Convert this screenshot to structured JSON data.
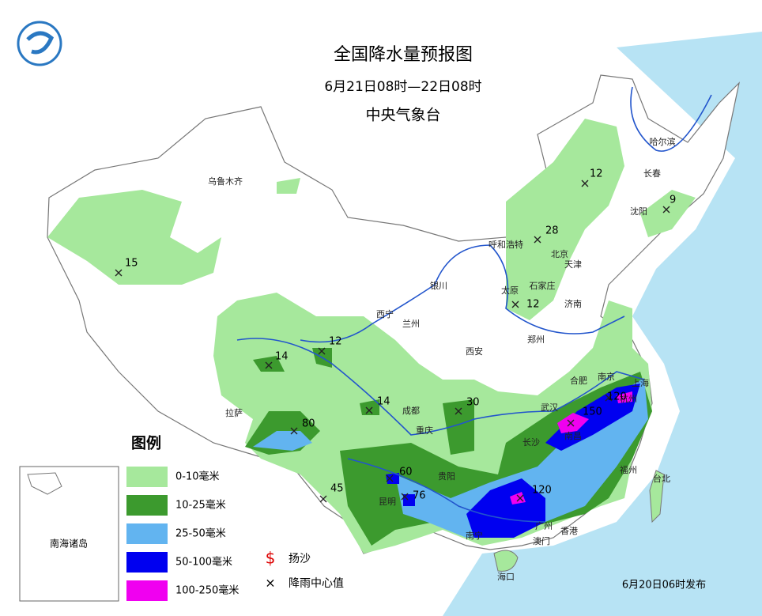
{
  "header": {
    "title": "全国降水量预报图",
    "period": "6月21日08时—22日08时",
    "issuer": "中央气象台"
  },
  "cities": [
    {
      "label": "乌鲁木齐"
    },
    {
      "label": "哈尔滨"
    },
    {
      "label": "长春"
    },
    {
      "label": "沈阳"
    },
    {
      "label": "呼和浩特"
    },
    {
      "label": "北京"
    },
    {
      "label": "天津"
    },
    {
      "label": "石家庄"
    },
    {
      "label": "太原"
    },
    {
      "label": "济南"
    },
    {
      "label": "银川"
    },
    {
      "label": "西宁"
    },
    {
      "label": "兰州"
    },
    {
      "label": "郑州"
    },
    {
      "label": "西安"
    },
    {
      "label": "合肥"
    },
    {
      "label": "南京"
    },
    {
      "label": "上海"
    },
    {
      "label": "拉萨"
    },
    {
      "label": "成都"
    },
    {
      "label": "武汉"
    },
    {
      "label": "杭州"
    },
    {
      "label": "重庆"
    },
    {
      "label": "长沙"
    },
    {
      "label": "南昌"
    },
    {
      "label": "贵阳"
    },
    {
      "label": "福州"
    },
    {
      "label": "昆明"
    },
    {
      "label": "台北"
    },
    {
      "label": "广州"
    },
    {
      "label": "香港"
    },
    {
      "label": "南宁"
    },
    {
      "label": "海口"
    },
    {
      "label": "澳门"
    }
  ],
  "rain_centers": [
    {
      "value": 15
    },
    {
      "value": 12
    },
    {
      "value": 9
    },
    {
      "value": 28
    },
    {
      "value": 12
    },
    {
      "value": 14
    },
    {
      "value": 12
    },
    {
      "value": 14
    },
    {
      "value": 30
    },
    {
      "value": 80
    },
    {
      "value": 150
    },
    {
      "value": 120
    },
    {
      "value": 60
    },
    {
      "value": 76
    },
    {
      "value": 45
    },
    {
      "value": 120
    }
  ],
  "legend": {
    "title": "图例",
    "items": [
      {
        "label": "0-10毫米",
        "color": "#a6e89c"
      },
      {
        "label": "10-25毫米",
        "color": "#3c9a2e"
      },
      {
        "label": "25-50毫米",
        "color": "#62b4f0"
      },
      {
        "label": "50-100毫米",
        "color": "#0000f0"
      },
      {
        "label": "100-250毫米",
        "color": "#f000f0"
      }
    ],
    "symbols": [
      {
        "label": "扬沙",
        "symbol": "$"
      },
      {
        "label": "降雨中心值",
        "symbol": "×"
      }
    ]
  },
  "inset": {
    "label": "南海诸岛"
  },
  "footer": {
    "issued": "6月20日06时发布"
  }
}
